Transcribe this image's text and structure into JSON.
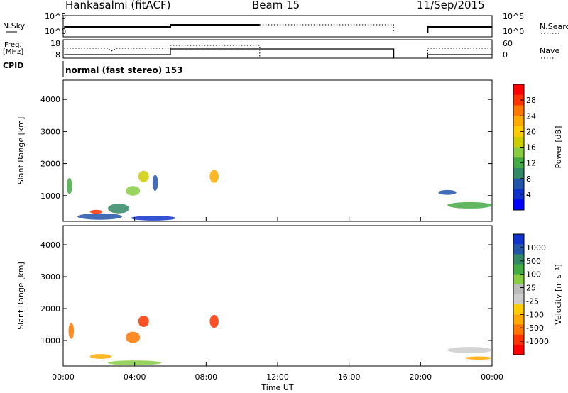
{
  "header": {
    "station": "Hankasalmi (fitACF)",
    "beam": "Beam 15",
    "date": "11/Sep/2015"
  },
  "panels": {
    "nsky_label": "N.Sky",
    "nsearch_label": "N.Search",
    "freq_label_1": "Freq.",
    "freq_label_2": "[MHz]",
    "nave_label": "Nave",
    "cpid_label": "CPID",
    "cpid_text": "normal (fast stereo) 153",
    "nsky_ticks": [
      "10^5",
      "10^0"
    ],
    "nsearch_ticks": [
      "10^5",
      "10^0"
    ],
    "freq_ticks": [
      "18",
      "8"
    ],
    "nave_ticks": [
      "60",
      "0"
    ]
  },
  "colorbars": {
    "power": {
      "label": "Power [dB]",
      "ticks": [
        "28",
        "24",
        "20",
        "16",
        "12",
        "8",
        "4"
      ],
      "colors": [
        "#ff0000",
        "#ff3300",
        "#ff7700",
        "#ffaa00",
        "#ffcc00",
        "#cccc00",
        "#88cc44",
        "#44aa44",
        "#338866",
        "#2255aa",
        "#1133cc",
        "#0000ff"
      ]
    },
    "velocity": {
      "label": "Velocity [m s⁻¹]",
      "ticks": [
        "1000",
        "500",
        "100",
        "25",
        "-25",
        "-100",
        "-500",
        "-1000"
      ],
      "colors": [
        "#1133cc",
        "#2255aa",
        "#338866",
        "#44aa44",
        "#88cc44",
        "#bbbbbb",
        "#cccccc",
        "#ffcc00",
        "#ffaa00",
        "#ff7700",
        "#ff3300",
        "#ff0000"
      ]
    }
  },
  "chart_data": [
    {
      "type": "heatmap",
      "name": "power",
      "ylabel": "Slant Range [km]",
      "yticks": [
        "4000",
        "3000",
        "2000",
        "1000"
      ],
      "ylim": [
        200,
        4600
      ],
      "xlim": [
        0,
        24
      ],
      "blobs": [
        {
          "t": 0.2,
          "r": 1300,
          "dt": 0.3,
          "dr": 500,
          "c": "#44aa44"
        },
        {
          "t": 0.8,
          "r": 350,
          "dt": 2.5,
          "dr": 200,
          "c": "#2255aa"
        },
        {
          "t": 1.5,
          "r": 500,
          "dt": 0.7,
          "dr": 120,
          "c": "#ff3300"
        },
        {
          "t": 2.5,
          "r": 600,
          "dt": 1.2,
          "dr": 300,
          "c": "#338866"
        },
        {
          "t": 3.5,
          "r": 1150,
          "dt": 0.8,
          "dr": 300,
          "c": "#88cc44"
        },
        {
          "t": 4.2,
          "r": 1600,
          "dt": 0.6,
          "dr": 350,
          "c": "#cccc00"
        },
        {
          "t": 5,
          "r": 1400,
          "dt": 0.3,
          "dr": 500,
          "c": "#2255aa"
        },
        {
          "t": 8.2,
          "r": 1600,
          "dt": 0.5,
          "dr": 400,
          "c": "#ffaa00"
        },
        {
          "t": 3.8,
          "r": 300,
          "dt": 2.5,
          "dr": 150,
          "c": "#1133cc"
        },
        {
          "t": 21.5,
          "r": 700,
          "dt": 2.5,
          "dr": 200,
          "c": "#44aa44"
        },
        {
          "t": 21.0,
          "r": 1100,
          "dt": 1.0,
          "dr": 150,
          "c": "#2255aa"
        }
      ]
    },
    {
      "type": "heatmap",
      "name": "velocity",
      "ylabel": "Slant Range [km]",
      "yticks": [
        "4000",
        "3000",
        "2000",
        "1000"
      ],
      "ylim": [
        200,
        4600
      ],
      "xlim": [
        0,
        24
      ],
      "blobs": [
        {
          "t": 0.3,
          "r": 1300,
          "dt": 0.3,
          "dr": 500,
          "c": "#ff7700"
        },
        {
          "t": 1.5,
          "r": 500,
          "dt": 1.2,
          "dr": 150,
          "c": "#ffaa00"
        },
        {
          "t": 3.5,
          "r": 1100,
          "dt": 0.8,
          "dr": 350,
          "c": "#ff7700"
        },
        {
          "t": 4.2,
          "r": 1600,
          "dt": 0.6,
          "dr": 350,
          "c": "#ff3300"
        },
        {
          "t": 8.2,
          "r": 1600,
          "dt": 0.5,
          "dr": 400,
          "c": "#ff3300"
        },
        {
          "t": 2.5,
          "r": 300,
          "dt": 3.0,
          "dr": 150,
          "c": "#88cc44"
        },
        {
          "t": 21.5,
          "r": 700,
          "dt": 2.5,
          "dr": 200,
          "c": "#cccccc"
        },
        {
          "t": 22.5,
          "r": 450,
          "dt": 1.5,
          "dr": 100,
          "c": "#ffaa00"
        }
      ]
    }
  ],
  "xaxis": {
    "label": "Time UT",
    "ticks": [
      "00:00",
      "04:00",
      "08:00",
      "12:00",
      "16:00",
      "20:00",
      "00:00"
    ]
  }
}
